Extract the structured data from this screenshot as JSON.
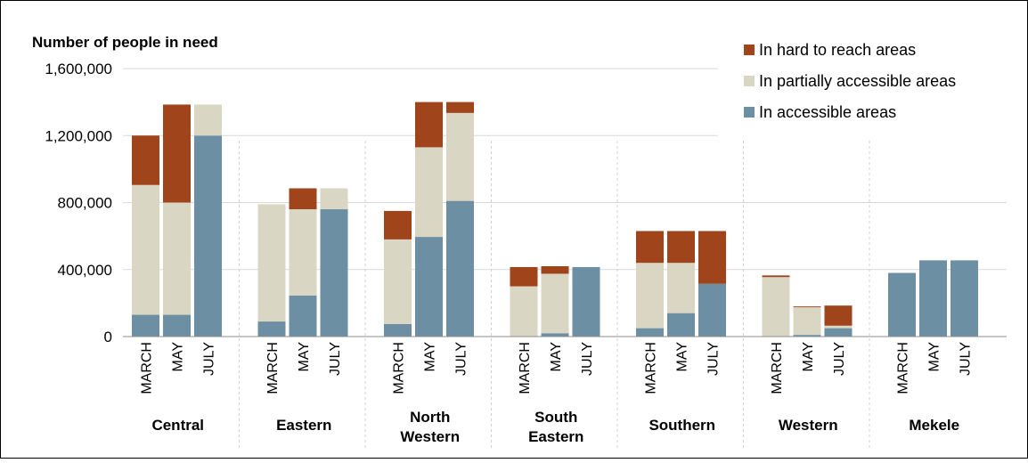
{
  "chart_data": {
    "type": "bar",
    "stacked": true,
    "ylabel": "Number of people in need",
    "ylim": [
      0,
      1600000
    ],
    "yticks": [
      0,
      400000,
      800000,
      1200000,
      1600000
    ],
    "ytick_labels": [
      "0",
      "400,000",
      "800,000",
      "1,200,000",
      "1,600,000"
    ],
    "grid": true,
    "legend_position": "top-right",
    "groups": [
      "Central",
      "Eastern",
      "North Western",
      "South Eastern",
      "Southern",
      "Western",
      "Mekele"
    ],
    "categories": [
      "MARCH",
      "MAY",
      "JULY"
    ],
    "series": [
      {
        "name": "In accessible areas",
        "color": "#6d8fa3",
        "values": [
          [
            130000,
            130000,
            1200000
          ],
          [
            90000,
            245000,
            760000
          ],
          [
            75000,
            595000,
            810000
          ],
          [
            0,
            20000,
            415000
          ],
          [
            50000,
            140000,
            315000
          ],
          [
            0,
            10000,
            50000
          ],
          [
            380000,
            455000,
            455000
          ]
        ]
      },
      {
        "name": "In partially accessible areas",
        "color": "#d9d6c4",
        "values": [
          [
            775000,
            670000,
            185000
          ],
          [
            700000,
            515000,
            125000
          ],
          [
            505000,
            535000,
            525000
          ],
          [
            300000,
            355000,
            0
          ],
          [
            390000,
            300000,
            0
          ],
          [
            355000,
            165000,
            15000
          ],
          [
            0,
            0,
            0
          ]
        ]
      },
      {
        "name": "In hard to reach areas",
        "color": "#a0441c",
        "values": [
          [
            295000,
            585000,
            0
          ],
          [
            0,
            125000,
            0
          ],
          [
            170000,
            270000,
            65000
          ],
          [
            115000,
            45000,
            0
          ],
          [
            190000,
            190000,
            315000
          ],
          [
            10000,
            5000,
            120000
          ],
          [
            0,
            0,
            0
          ]
        ]
      }
    ]
  }
}
